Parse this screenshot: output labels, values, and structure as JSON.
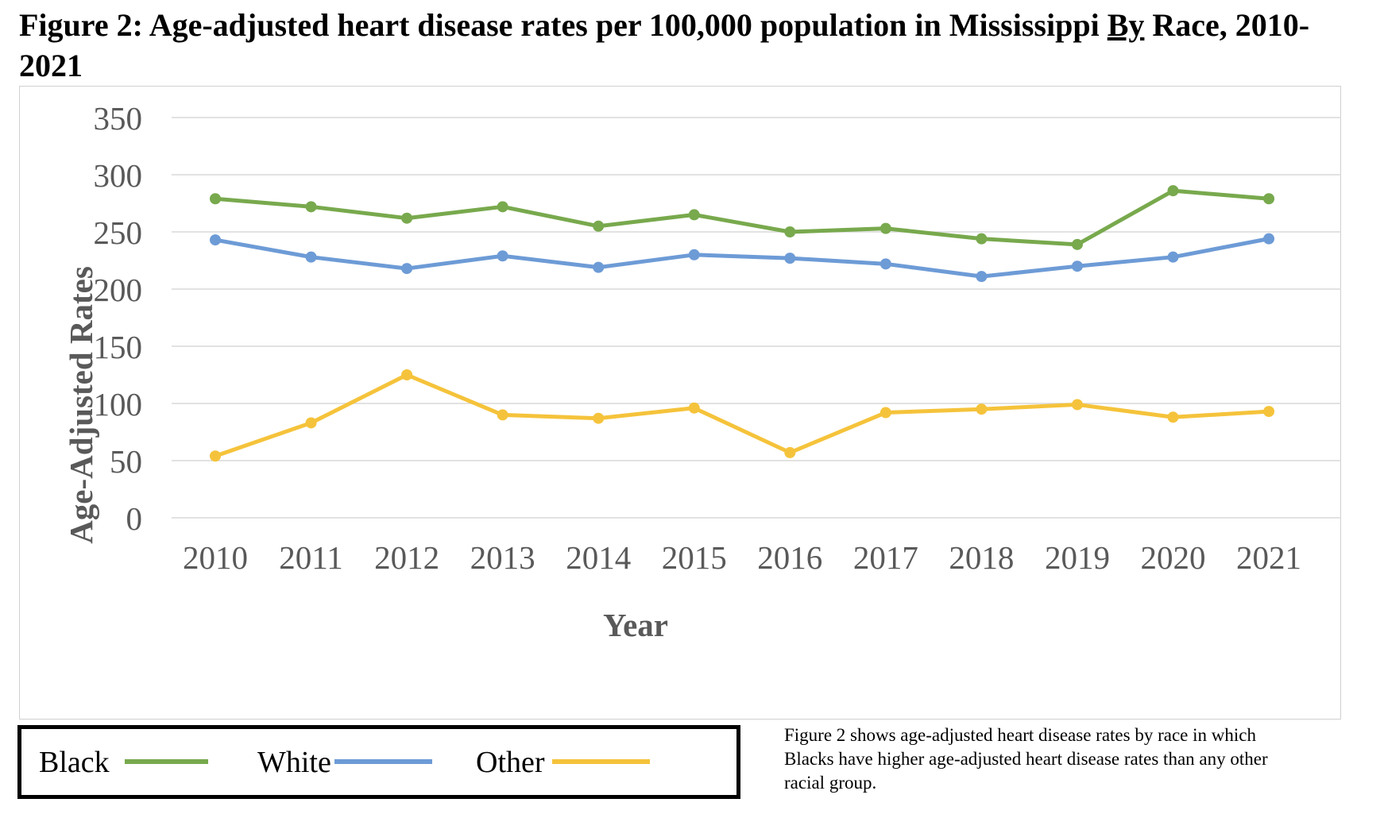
{
  "title": {
    "before_link": "Figure 2: Age-adjusted heart disease rates per 100,000 population in Mississippi ",
    "link": "By",
    "after_link": " Race, 2010-2021"
  },
  "chart_data": {
    "type": "line",
    "x": [
      "2010",
      "2011",
      "2012",
      "2013",
      "2014",
      "2015",
      "2016",
      "2017",
      "2018",
      "2019",
      "2020",
      "2021"
    ],
    "xlabel": "Year",
    "ylabel": "Age-Adjusted Rates",
    "ylim": [
      0,
      350
    ],
    "yticks": [
      0,
      50,
      100,
      150,
      200,
      250,
      300,
      350
    ],
    "grid": true,
    "legend_position": "bottom",
    "series": [
      {
        "name": "Black",
        "color": "#78a94d",
        "values": [
          279,
          272,
          262,
          272,
          255,
          265,
          250,
          253,
          244,
          239,
          286,
          279
        ]
      },
      {
        "name": "White",
        "color": "#6d9bd6",
        "values": [
          243,
          228,
          218,
          229,
          219,
          230,
          227,
          222,
          211,
          220,
          228,
          244
        ]
      },
      {
        "name": "Other",
        "color": "#f5c33b",
        "values": [
          54,
          83,
          125,
          90,
          87,
          96,
          57,
          92,
          95,
          99,
          88,
          93
        ]
      }
    ]
  },
  "caption": "Figure 2 shows age-adjusted heart disease rates by race in which Blacks have higher age-adjusted heart disease rates than any other racial group."
}
